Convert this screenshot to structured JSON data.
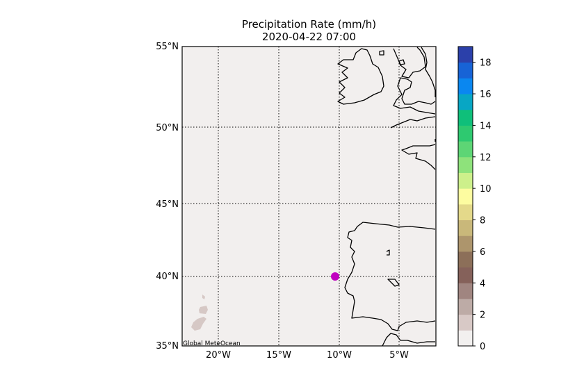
{
  "title": {
    "line1": "Precipitation Rate (mm/h)",
    "line2": "2020-04-22 07:00"
  },
  "map": {
    "lat_labels": [
      "55°N",
      "50°N",
      "45°N",
      "40°N",
      "35°N"
    ],
    "lon_labels": [
      "20°W",
      "15°W",
      "10°W",
      "5°W"
    ],
    "watermark": "Global MeteOcean",
    "background_color": "#f2efee",
    "marker": {
      "lat": 40.0,
      "lon": -10.3,
      "color": "#c000c0"
    }
  },
  "colorbar": {
    "tick_labels": [
      "0",
      "2",
      "4",
      "6",
      "8",
      "10",
      "12",
      "14",
      "16",
      "18"
    ],
    "min": 0,
    "max": 19,
    "colors": [
      "#f2f0ef",
      "#d8c9c6",
      "#bdaba6",
      "#a08580",
      "#85615a",
      "#8c6f59",
      "#ad956c",
      "#c9b87a",
      "#e4d98a",
      "#fdfca0",
      "#cdf08b",
      "#8ee27b",
      "#5dd575",
      "#2ec970",
      "#0fbf7a",
      "#08a6c4",
      "#0a87f0",
      "#1763d6",
      "#2b40aa"
    ]
  }
}
